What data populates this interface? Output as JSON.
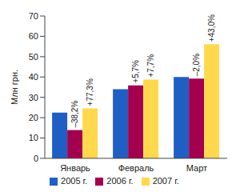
{
  "chart_data": {
    "type": "bar",
    "y_label": "Млн грн.",
    "categories": [
      "Январь",
      "Февраль",
      "Март"
    ],
    "series": [
      {
        "name": "2005 г.",
        "color": "#1f5fc4",
        "values": [
          22.5,
          34,
          40
        ]
      },
      {
        "name": "2006 г.",
        "color": "#a3004f",
        "values": [
          13.9,
          35.9,
          39.2
        ]
      },
      {
        "name": "2007 г.",
        "color": "#ffd84d",
        "values": [
          24.6,
          38.7,
          56.1
        ]
      }
    ],
    "annotations": [
      {
        "category": "Январь",
        "series": "2006 г.",
        "text": "–38,2%"
      },
      {
        "category": "Январь",
        "series": "2007 г.",
        "text": "+77,3%"
      },
      {
        "category": "Февраль",
        "series": "2006 г.",
        "text": "+5,7%"
      },
      {
        "category": "Февраль",
        "series": "2007 г.",
        "text": "+7,7%"
      },
      {
        "category": "Март",
        "series": "2006 г.",
        "text": "–2,0%"
      },
      {
        "category": "Март",
        "series": "2007 г.",
        "text": "+43,0%"
      }
    ],
    "ylim": [
      0,
      70
    ],
    "yticks": [
      0,
      10,
      20,
      30,
      40,
      50,
      60,
      70
    ],
    "grid": false,
    "legend": "bottom"
  }
}
